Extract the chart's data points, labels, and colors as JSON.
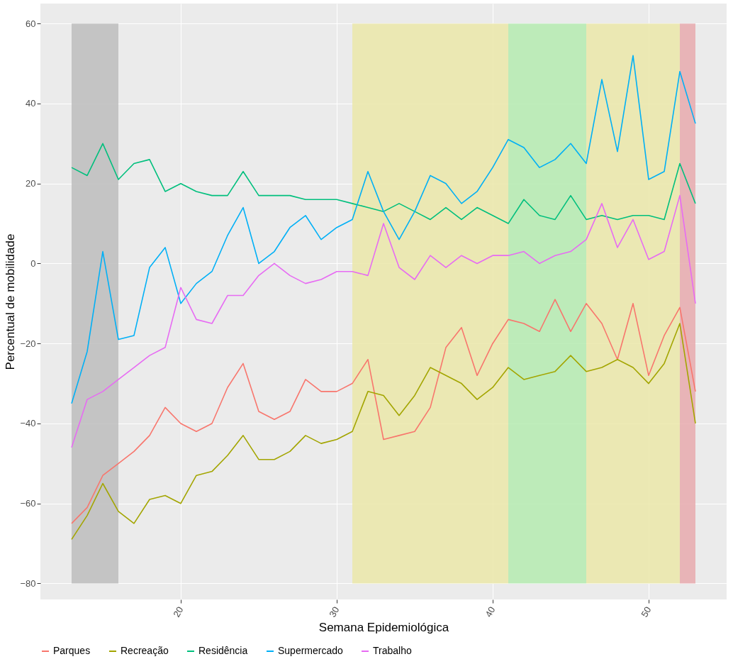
{
  "chart_data": {
    "type": "line",
    "xlabel": "Semana Epidemiológica",
    "ylabel": "Percentual de mobilidade",
    "x": [
      13,
      14,
      15,
      16,
      17,
      18,
      19,
      20,
      21,
      22,
      23,
      24,
      25,
      26,
      27,
      28,
      29,
      30,
      31,
      32,
      33,
      34,
      35,
      36,
      37,
      38,
      39,
      40,
      41,
      42,
      43,
      44,
      45,
      46,
      47,
      48,
      49,
      50,
      51,
      52,
      53
    ],
    "series": [
      {
        "name": "Parques",
        "color": "#f8766d",
        "values": [
          -65,
          -61,
          -53,
          -50,
          -47,
          -43,
          -36,
          -40,
          -42,
          -40,
          -31,
          -25,
          -37,
          -39,
          -37,
          -29,
          -32,
          -32,
          -30,
          -24,
          -44,
          -43,
          -42,
          -36,
          -21,
          -16,
          -28,
          -20,
          -14,
          -15,
          -17,
          -9,
          -17,
          -10,
          -15,
          -24,
          -10,
          -28,
          -18,
          -11,
          -32
        ]
      },
      {
        "name": "Recreação",
        "color": "#a3a500",
        "values": [
          -69,
          -63,
          -55,
          -62,
          -65,
          -59,
          -58,
          -60,
          -53,
          -52,
          -48,
          -43,
          -49,
          -49,
          -47,
          -43,
          -45,
          -44,
          -42,
          -32,
          -33,
          -38,
          -33,
          -26,
          -28,
          -30,
          -34,
          -31,
          -26,
          -29,
          -28,
          -27,
          -23,
          -27,
          -26,
          -24,
          -26,
          -30,
          -25,
          -15,
          -40
        ]
      },
      {
        "name": "Residência",
        "color": "#00bf7d",
        "values": [
          24,
          22,
          30,
          21,
          25,
          26,
          18,
          20,
          18,
          17,
          17,
          23,
          17,
          17,
          17,
          16,
          16,
          16,
          15,
          14,
          13,
          15,
          13,
          11,
          14,
          11,
          14,
          12,
          10,
          16,
          12,
          11,
          17,
          11,
          12,
          11,
          12,
          12,
          11,
          25,
          15
        ]
      },
      {
        "name": "Supermercado",
        "color": "#00b0f6",
        "values": [
          -35,
          -22,
          3,
          -19,
          -18,
          -1,
          4,
          -10,
          -5,
          -2,
          7,
          14,
          0,
          3,
          9,
          12,
          6,
          9,
          11,
          23,
          13,
          6,
          13,
          22,
          20,
          15,
          18,
          24,
          31,
          29,
          24,
          26,
          30,
          25,
          46,
          28,
          52,
          21,
          23,
          48,
          35
        ]
      },
      {
        "name": "Trabalho",
        "color": "#e76bf3",
        "values": [
          -46,
          -34,
          -32,
          -29,
          -26,
          -23,
          -21,
          -6,
          -14,
          -15,
          -8,
          -8,
          -3,
          0,
          -3,
          -5,
          -4,
          -2,
          -2,
          -3,
          10,
          -1,
          -4,
          2,
          -1,
          2,
          0,
          2,
          2,
          3,
          0,
          2,
          3,
          6,
          15,
          4,
          11,
          1,
          3,
          17,
          -10
        ]
      }
    ],
    "bands": [
      {
        "axis": "x",
        "from": 13,
        "to": 16,
        "color": "#bdbdbd"
      },
      {
        "axis": "x",
        "from": 31,
        "to": 41,
        "color": "#ebe7a9"
      },
      {
        "axis": "x",
        "from": 41,
        "to": 46,
        "color": "#b5ebb0"
      },
      {
        "axis": "x",
        "from": 46,
        "to": 52,
        "color": "#ebe7a9"
      },
      {
        "axis": "x",
        "from": 52,
        "to": 53,
        "color": "#e8aaae"
      }
    ],
    "xlim": [
      11,
      55
    ],
    "xticks": [
      20,
      30,
      40,
      50
    ],
    "ylim": [
      -84,
      65
    ],
    "yticks": [
      -80,
      -60,
      -40,
      -20,
      0,
      20,
      40,
      60
    ],
    "grid": true,
    "legend": "bottom",
    "line_style": "solid",
    "marker": "none"
  }
}
